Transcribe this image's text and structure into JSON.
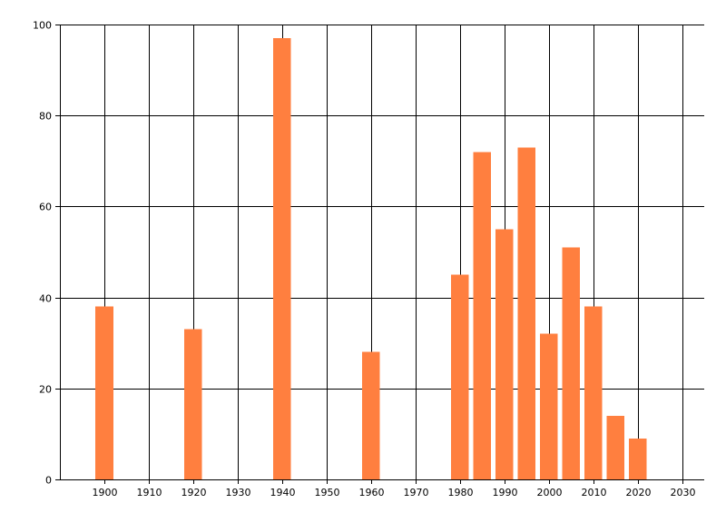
{
  "chart_data": {
    "type": "bar",
    "title": "",
    "xlabel": "",
    "ylabel": "",
    "x": [
      1900,
      1920,
      1940,
      1960,
      1980,
      1985,
      1990,
      1995,
      2000,
      2005,
      2010,
      2015,
      2020
    ],
    "values": [
      38,
      33,
      97,
      28,
      45,
      72,
      55,
      73,
      32,
      51,
      38,
      14,
      9
    ],
    "xlim": [
      1890,
      2035
    ],
    "ylim": [
      0,
      100
    ],
    "xticks": [
      1900,
      1910,
      1920,
      1930,
      1940,
      1950,
      1960,
      1970,
      1980,
      1990,
      2000,
      2010,
      2020,
      2030
    ],
    "yticks": [
      0,
      20,
      40,
      60,
      80,
      100
    ],
    "bar_color": "#ff7f3f",
    "grid": true,
    "legend": "none"
  }
}
